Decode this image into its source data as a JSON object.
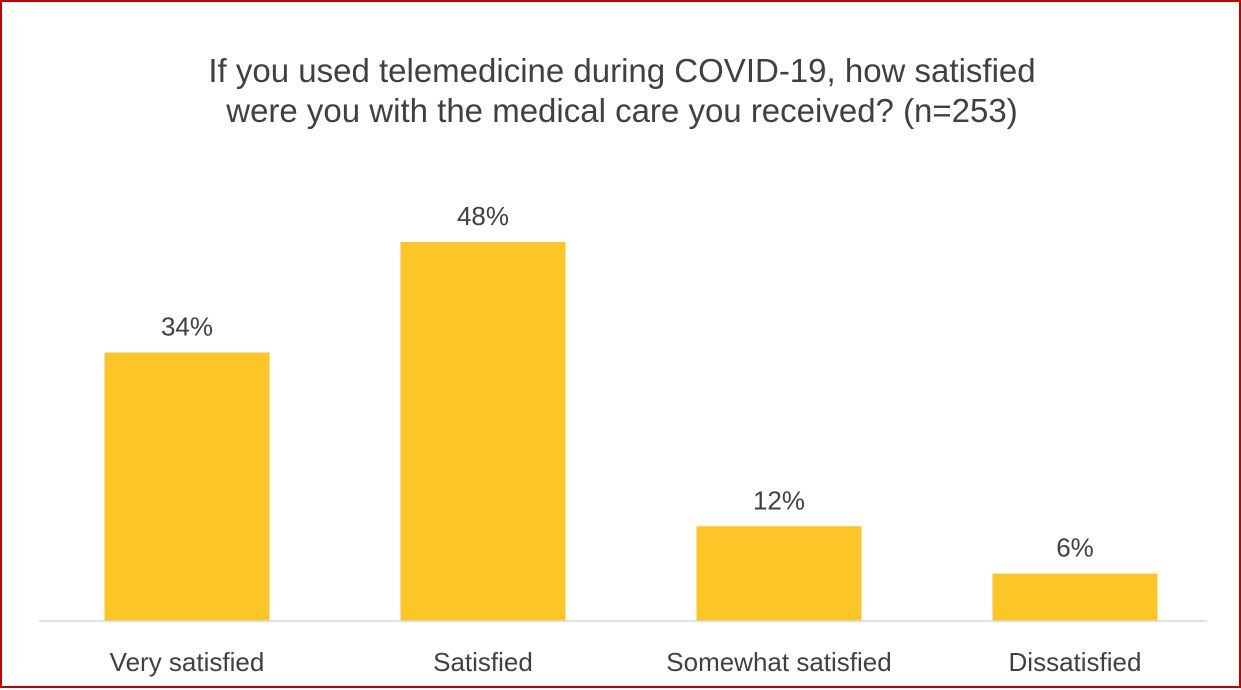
{
  "chart_data": {
    "type": "bar",
    "title_lines": [
      "If you used telemedicine during COVID-19, how satisfied",
      "were you with the medical care you received? (n=253)"
    ],
    "categories": [
      "Very satisfied",
      "Satisfied",
      "Somewhat satisfied",
      "Dissatisfied"
    ],
    "values": [
      34,
      48,
      12,
      6
    ],
    "data_labels": [
      "34%",
      "48%",
      "12%",
      "6%"
    ],
    "unit": "%",
    "xlabel": "",
    "ylabel": "",
    "ylim": [
      0,
      48
    ],
    "grid": false,
    "legend": "none",
    "bar_color": "#FDC526",
    "axis_color": "#D9D9D9",
    "text_color": "#404040",
    "border_color": "#C00000"
  }
}
